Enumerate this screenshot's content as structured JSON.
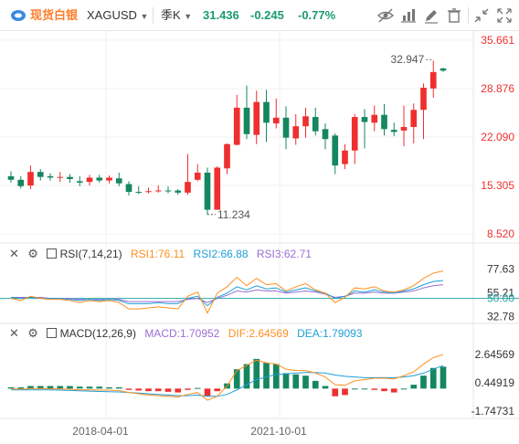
{
  "toolbar": {
    "logo_text": "现货白银",
    "symbol": "XAGUSD",
    "period": "季K",
    "last_price": "31.436",
    "change": "-0.245",
    "change_pct": "-0.77%",
    "icons": [
      "eye-slash-icon",
      "bar-chart-icon",
      "pencil-icon",
      "delete-icon",
      "collapse-icon",
      "fullscreen-icon"
    ]
  },
  "main": {
    "axis_labels": [
      "35.661",
      "28.876",
      "22.090",
      "15.305",
      "8.520"
    ],
    "high_label": "32.947",
    "low_label": "11.234"
  },
  "rsi": {
    "name": "RSI(7,14,21)",
    "rsi1": "RSI1:76.11",
    "rsi2": "RSI2:66.88",
    "rsi3": "RSI3:62.71",
    "axis_labels": [
      "77.63",
      "55.21",
      "50.00",
      "32.78"
    ]
  },
  "macd": {
    "name": "MACD(12,26,9)",
    "macd": "MACD:1.70952",
    "dif": "DIF:2.64569",
    "dea": "DEA:1.79093",
    "axis_labels": [
      "2.64569",
      "0.44919",
      "-1.74731"
    ]
  },
  "time_axis": [
    "2018-04-01",
    "2021-10-01"
  ],
  "colors": {
    "up": "#ef2f2f",
    "down": "#15875f",
    "orange": "#ff8f1f",
    "blue": "#1e9fd8",
    "purple": "#9b6ed6",
    "teal": "#2aa6a6"
  },
  "chart_data": {
    "type": "candlestick",
    "candles": [
      [
        16.6,
        16.1,
        17.3,
        15.7
      ],
      [
        16.1,
        15.2,
        16.6,
        14.9
      ],
      [
        15.3,
        17.2,
        18.1,
        14.8
      ],
      [
        17.2,
        16.5,
        17.6,
        16.0
      ],
      [
        16.6,
        16.4,
        17.0,
        16.0
      ],
      [
        16.5,
        16.5,
        17.2,
        15.8
      ],
      [
        16.5,
        16.2,
        16.9,
        15.7
      ],
      [
        15.9,
        15.7,
        16.6,
        15.2
      ],
      [
        15.8,
        16.4,
        16.8,
        15.3
      ],
      [
        16.4,
        16.0,
        16.8,
        15.7
      ],
      [
        16.0,
        16.4,
        16.7,
        15.6
      ],
      [
        16.3,
        15.6,
        17.1,
        15.2
      ],
      [
        15.5,
        14.4,
        15.9,
        13.9
      ],
      [
        14.4,
        14.3,
        15.2,
        14.1
      ],
      [
        14.5,
        14.5,
        15.0,
        14.2
      ],
      [
        14.6,
        14.6,
        15.3,
        14.3
      ],
      [
        14.6,
        14.5,
        15.2,
        14.2
      ],
      [
        14.6,
        14.3,
        14.8,
        14.0
      ],
      [
        14.3,
        15.8,
        19.7,
        14.0
      ],
      [
        16.1,
        17.1,
        18.3,
        15.9
      ],
      [
        17.1,
        11.9,
        17.8,
        11.2
      ],
      [
        11.9,
        17.8,
        18.0,
        11.9
      ],
      [
        17.7,
        21.1,
        21.2,
        16.9
      ],
      [
        21.0,
        26.2,
        28.0,
        20.9
      ],
      [
        26.2,
        22.5,
        29.3,
        21.8
      ],
      [
        22.4,
        27.0,
        28.6,
        21.1
      ],
      [
        27.0,
        24.1,
        28.7,
        21.4
      ],
      [
        24.0,
        24.8,
        27.5,
        23.3
      ],
      [
        24.8,
        22.0,
        26.4,
        20.4
      ],
      [
        21.9,
        23.6,
        25.3,
        21.0
      ],
      [
        23.6,
        25.0,
        26.2,
        22.0
      ],
      [
        24.9,
        22.9,
        26.2,
        22.3
      ],
      [
        23.2,
        21.8,
        24.0,
        20.4
      ],
      [
        22.3,
        18.1,
        22.6,
        16.9
      ],
      [
        18.3,
        20.2,
        21.1,
        17.6
      ],
      [
        20.2,
        24.9,
        25.3,
        18.3
      ],
      [
        24.9,
        24.2,
        26.0,
        20.5
      ],
      [
        24.1,
        25.2,
        26.5,
        22.9
      ],
      [
        25.2,
        23.2,
        26.7,
        22.3
      ],
      [
        23.1,
        22.8,
        24.1,
        22.2
      ],
      [
        23.0,
        23.5,
        26.5,
        20.8
      ],
      [
        23.5,
        25.9,
        26.8,
        21.2
      ],
      [
        25.9,
        29.0,
        29.6,
        21.8
      ],
      [
        28.9,
        31.2,
        32.8,
        27.6
      ],
      [
        31.7,
        31.4,
        31.8,
        31.2
      ]
    ],
    "high_label": 32.947,
    "low_label": 11.234,
    "rsi1": [
      50,
      48,
      52,
      50,
      49,
      49,
      48,
      46,
      48,
      47,
      48,
      46,
      40,
      40,
      41,
      42,
      41,
      40,
      52,
      56,
      36,
      55,
      61,
      70,
      62,
      69,
      63,
      64,
      57,
      61,
      64,
      58,
      55,
      46,
      51,
      60,
      59,
      61,
      57,
      56,
      58,
      62,
      69,
      74,
      76
    ],
    "rsi2": [
      51,
      50,
      51,
      50,
      50,
      50,
      49,
      48,
      49,
      48,
      49,
      48,
      45,
      45,
      45,
      46,
      45,
      45,
      50,
      52,
      43,
      51,
      55,
      61,
      58,
      62,
      59,
      60,
      56,
      58,
      60,
      57,
      55,
      50,
      52,
      57,
      56,
      58,
      56,
      55,
      57,
      59,
      63,
      66,
      67
    ],
    "rsi3": [
      51,
      51,
      51,
      51,
      50,
      50,
      50,
      49,
      49,
      49,
      49,
      49,
      47,
      47,
      47,
      47,
      47,
      47,
      49,
      50,
      46,
      50,
      53,
      57,
      56,
      58,
      57,
      57,
      55,
      56,
      57,
      56,
      54,
      51,
      52,
      55,
      55,
      56,
      55,
      55,
      56,
      57,
      60,
      62,
      63
    ],
    "macd_hist": [
      0.1,
      0.1,
      0.2,
      0.2,
      0.2,
      0.2,
      0.2,
      0.15,
      0.15,
      0.15,
      0.1,
      0.1,
      -0.1,
      -0.15,
      -0.2,
      -0.2,
      -0.25,
      -0.3,
      -0.1,
      0.05,
      -0.6,
      -0.2,
      0.4,
      1.5,
      1.9,
      2.3,
      2.0,
      1.9,
      1.2,
      1.1,
      1.0,
      0.6,
      0.2,
      -0.6,
      -0.5,
      0.0,
      0.0,
      -0.1,
      -0.2,
      -0.3,
      0.0,
      0.3,
      1.0,
      1.6,
      1.7
    ],
    "dif": [
      0.0,
      -0.05,
      0.0,
      0.0,
      -0.02,
      -0.03,
      -0.05,
      -0.1,
      -0.1,
      -0.12,
      -0.12,
      -0.15,
      -0.3,
      -0.4,
      -0.5,
      -0.55,
      -0.6,
      -0.65,
      -0.45,
      -0.3,
      -0.9,
      -0.6,
      0.2,
      1.4,
      1.8,
      2.2,
      2.0,
      1.9,
      1.5,
      1.4,
      1.4,
      1.2,
      0.9,
      0.3,
      0.25,
      0.6,
      0.7,
      0.8,
      0.8,
      0.75,
      1.0,
      1.3,
      1.9,
      2.4,
      2.65
    ],
    "dea": [
      -0.1,
      -0.1,
      -0.1,
      -0.1,
      -0.1,
      -0.12,
      -0.14,
      -0.17,
      -0.2,
      -0.22,
      -0.24,
      -0.26,
      -0.3,
      -0.35,
      -0.4,
      -0.45,
      -0.5,
      -0.55,
      -0.55,
      -0.5,
      -0.6,
      -0.6,
      -0.45,
      -0.1,
      0.3,
      0.7,
      0.9,
      1.1,
      1.15,
      1.2,
      1.25,
      1.25,
      1.2,
      1.05,
      0.95,
      0.9,
      0.85,
      0.85,
      0.85,
      0.85,
      0.9,
      1.0,
      1.2,
      1.5,
      1.79
    ]
  }
}
